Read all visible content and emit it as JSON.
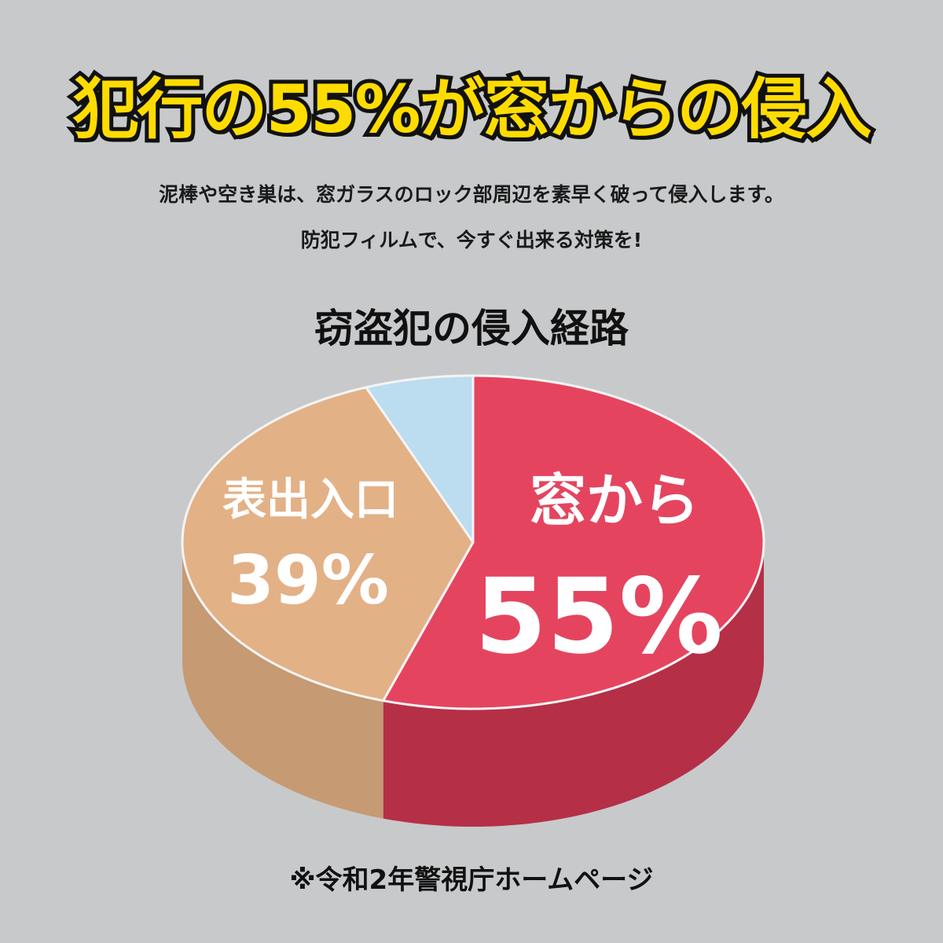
{
  "headline": "犯行の55%が窓からの侵入",
  "description": [
    "泥棒や空き巣は、窓ガラスのロック部周辺を素早く破って侵入します。",
    "防犯フィルムで、今すぐ出来る対策を!"
  ],
  "chart_data": {
    "type": "pie",
    "style": "3d",
    "title": "窃盗犯の侵入経路",
    "slices": [
      {
        "label": "窓から",
        "value": 55,
        "value_label": "55%",
        "color": "#e5445f",
        "side_color": "#b52f47"
      },
      {
        "label": "表出入口",
        "value": 39,
        "value_label": "39%",
        "color": "#e3b186",
        "side_color": "#c69a72"
      },
      {
        "label": "",
        "value": 6,
        "value_label": "",
        "color": "#bcdcef",
        "side_color": "#9fc2d6"
      }
    ],
    "legend": "none"
  },
  "source": "※令和2年警視庁ホームページ"
}
